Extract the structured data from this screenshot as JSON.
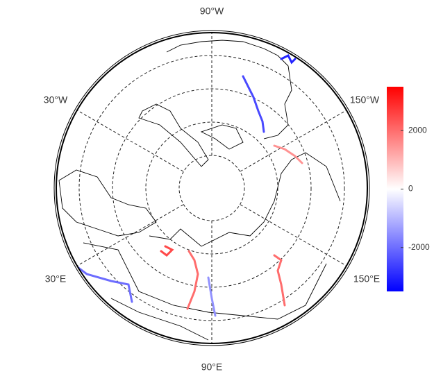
{
  "map": {
    "longitude_labels": [
      "90°W",
      "30°W",
      "150°W",
      "30°E",
      "150°E",
      "90°E"
    ],
    "colorbar": {
      "lim": [
        -3500,
        3500
      ],
      "ticks": [
        -2000,
        0,
        2000
      ],
      "colors": [
        "#0000ff",
        "#ffffff",
        "#ff0000"
      ]
    },
    "rivers": [
      2000,
      2000,
      2500,
      -2500,
      -3000,
      -2000,
      1500,
      -1500
    ]
  }
}
